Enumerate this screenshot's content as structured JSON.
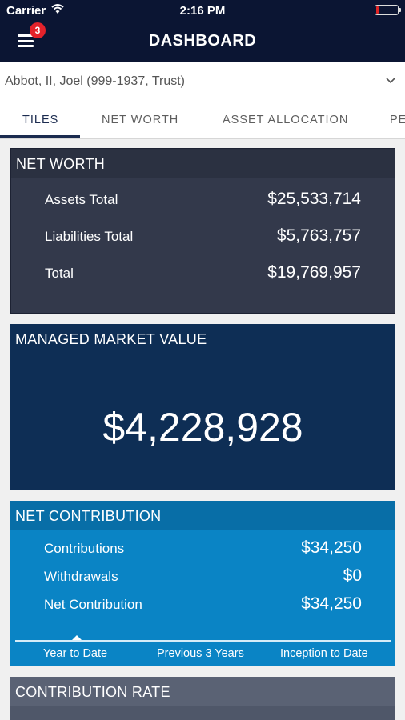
{
  "status_bar": {
    "carrier": "Carrier",
    "time": "2:16 PM",
    "battery_level": 0.1
  },
  "header": {
    "title": "DASHBOARD",
    "notification_count": "3"
  },
  "account": {
    "name": "Abbot, II, Joel (999-1937, Trust)"
  },
  "tabs": [
    {
      "label": "TILES",
      "active": true
    },
    {
      "label": "NET WORTH",
      "active": false
    },
    {
      "label": "ASSET ALLOCATION",
      "active": false
    },
    {
      "label": "PE",
      "active": false
    }
  ],
  "net_worth": {
    "title": "NET WORTH",
    "rows": [
      {
        "label": "Assets Total",
        "value": "$25,533,714"
      },
      {
        "label": "Liabilities Total",
        "value": "$5,763,757"
      },
      {
        "label": "Total",
        "value": "$19,769,957"
      }
    ]
  },
  "managed_market_value": {
    "title": "MANAGED MARKET VALUE",
    "value": "$4,228,928"
  },
  "net_contribution": {
    "title": "NET CONTRIBUTION",
    "rows": [
      {
        "label": "Contributions",
        "value": "$34,250"
      },
      {
        "label": "Withdrawals",
        "value": "$0"
      },
      {
        "label": "Net Contribution",
        "value": "$34,250"
      }
    ],
    "periods": [
      "Year to Date",
      "Previous 3 Years",
      "Inception to Date"
    ],
    "selected_period": "Year to Date"
  },
  "contribution_rate": {
    "title": "CONTRIBUTION RATE"
  },
  "colors": {
    "header_bg": "#0b1533",
    "net_worth_bg": "#33394b",
    "managed_market_value_bg": "#0e2e55",
    "net_contribution_bg": "#0a84c5",
    "contribution_rate_bg": "#4f5769",
    "badge": "#e3222b"
  }
}
